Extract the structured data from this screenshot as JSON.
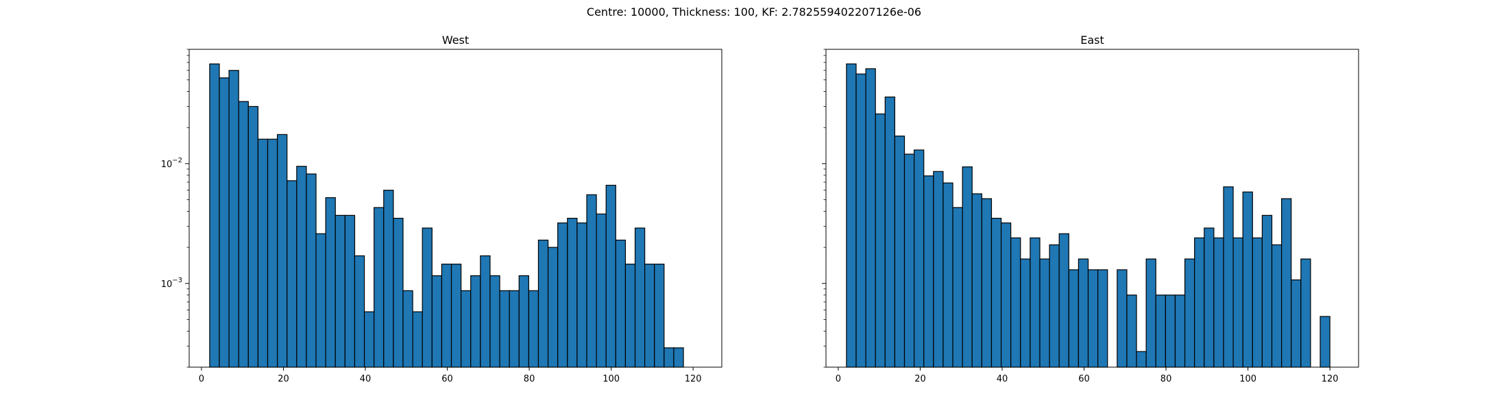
{
  "figure": {
    "suptitle": "Centre: 10000, Thickness: 100, KF: 2.782559402207126e-06"
  },
  "chart_data": [
    {
      "type": "bar",
      "title": "West",
      "xlabel": "",
      "ylabel": "",
      "yscale": "log",
      "xlim": [
        -3,
        127
      ],
      "ylim": [
        0.0002,
        0.09
      ],
      "xticks": [
        0,
        20,
        40,
        60,
        80,
        100,
        120
      ],
      "yticks": [
        0.001,
        0.01
      ],
      "ytick_labels": [
        "10^-3",
        "10^-2"
      ],
      "bin_edges": [
        2.0,
        4.36,
        6.72,
        9.08,
        11.44,
        13.8,
        16.16,
        18.52,
        20.88,
        23.24,
        25.6,
        27.96,
        30.32,
        32.68,
        35.04,
        37.4,
        39.76,
        42.12,
        44.48,
        46.84,
        49.2,
        51.56,
        53.92,
        56.28,
        58.64,
        61.0,
        63.36,
        65.72,
        68.08,
        70.44,
        72.8,
        75.16,
        77.52,
        79.88,
        82.24,
        84.6,
        86.96,
        89.32,
        91.68,
        94.04,
        96.4,
        98.76,
        101.12,
        103.48,
        105.84,
        108.2,
        110.56,
        112.92,
        115.28,
        117.64,
        120.0
      ],
      "values": [
        0.068,
        0.052,
        0.06,
        0.033,
        0.03,
        0.016,
        0.016,
        0.0175,
        0.0072,
        0.0095,
        0.0082,
        0.0026,
        0.0052,
        0.0037,
        0.0037,
        0.0017,
        0.00058,
        0.0043,
        0.006,
        0.0035,
        0.00087,
        0.00058,
        0.0029,
        0.00116,
        0.00145,
        0.00145,
        0.00087,
        0.00116,
        0.0017,
        0.00116,
        0.00087,
        0.00087,
        0.00116,
        0.00087,
        0.0023,
        0.002,
        0.0032,
        0.0035,
        0.0032,
        0.0055,
        0.0038,
        0.0066,
        0.0023,
        0.00145,
        0.0029,
        0.00145,
        0.00145,
        0.00029,
        0.00029,
        null
      ],
      "bar_color": "#1f77b4",
      "edge_color": "#000000"
    },
    {
      "type": "bar",
      "title": "East",
      "xlabel": "",
      "ylabel": "",
      "yscale": "log",
      "xlim": [
        -3,
        127
      ],
      "ylim": [
        0.0002,
        0.09
      ],
      "xticks": [
        0,
        20,
        40,
        60,
        80,
        100,
        120
      ],
      "yticks": [
        0.001,
        0.01
      ],
      "ytick_labels": [
        "",
        ""
      ],
      "bin_edges": [
        2.0,
        4.36,
        6.72,
        9.08,
        11.44,
        13.8,
        16.16,
        18.52,
        20.88,
        23.24,
        25.6,
        27.96,
        30.32,
        32.68,
        35.04,
        37.4,
        39.76,
        42.12,
        44.48,
        46.84,
        49.2,
        51.56,
        53.92,
        56.28,
        58.64,
        61.0,
        63.36,
        65.72,
        68.08,
        70.44,
        72.8,
        75.16,
        77.52,
        79.88,
        82.24,
        84.6,
        86.96,
        89.32,
        91.68,
        94.04,
        96.4,
        98.76,
        101.12,
        103.48,
        105.84,
        108.2,
        110.56,
        112.92,
        115.28,
        117.64,
        120.0
      ],
      "values": [
        0.068,
        0.056,
        0.062,
        0.026,
        0.036,
        0.017,
        0.012,
        0.013,
        0.0079,
        0.0086,
        0.0069,
        0.0043,
        0.0094,
        0.0056,
        0.0051,
        0.0035,
        0.0032,
        0.0024,
        0.0016,
        0.0024,
        0.0016,
        0.0021,
        0.0026,
        0.0013,
        0.0016,
        0.0013,
        0.0013,
        null,
        0.0013,
        0.0008,
        0.00027,
        0.0016,
        0.0008,
        0.0008,
        0.0008,
        0.0016,
        0.0024,
        0.0029,
        0.0024,
        0.0064,
        0.0024,
        0.0058,
        0.0024,
        0.0037,
        0.0021,
        0.0051,
        0.00107,
        0.0016,
        null,
        0.00053
      ],
      "bar_color": "#1f77b4",
      "edge_color": "#000000"
    }
  ]
}
